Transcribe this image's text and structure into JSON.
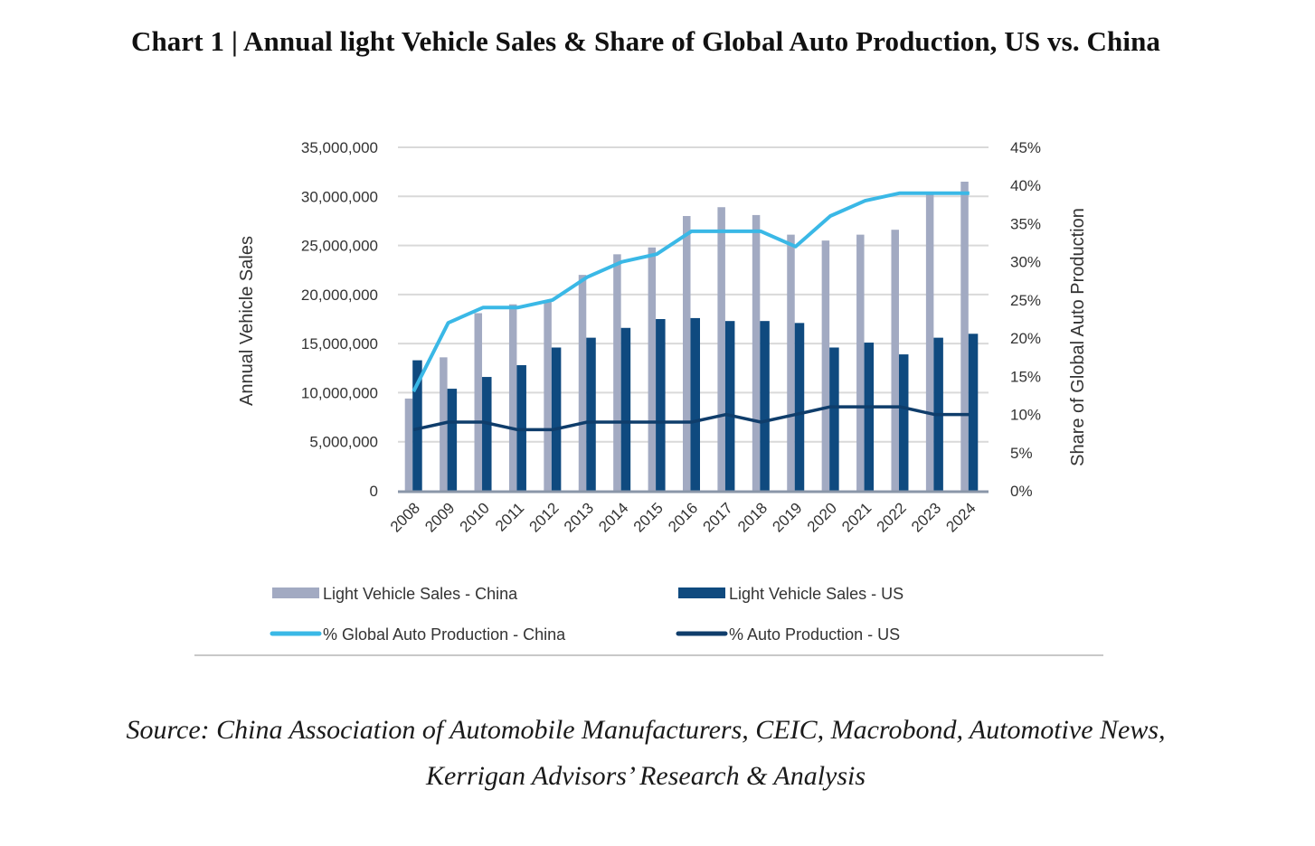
{
  "header": {
    "title": "Chart 1 | Annual light Vehicle Sales & Share of Global Auto Production, US vs. China"
  },
  "footer": {
    "source_line1": "Source: China Association of Automobile Manufacturers, CEIC, Macrobond, Automotive News,",
    "source_line2": "Kerrigan Advisors’ Research & Analysis"
  },
  "chart_data": {
    "type": "bar",
    "title": "Annual light Vehicle Sales & Share of Global Auto Production, US vs. China",
    "xlabel": "",
    "ylabel": "Annual Vehicle Sales",
    "y2label": "Share of Global Auto Production",
    "ylim": [
      0,
      35000000
    ],
    "y2lim": [
      0,
      45
    ],
    "grid": true,
    "legend_position": "bottom",
    "categories": [
      "2008",
      "2009",
      "2010",
      "2011",
      "2012",
      "2013",
      "2014",
      "2015",
      "2016",
      "2017",
      "2018",
      "2019",
      "2020",
      "2021",
      "2022",
      "2023",
      "2024"
    ],
    "yticks": [
      "0",
      "5,000,000",
      "10,000,000",
      "15,000,000",
      "20,000,000",
      "25,000,000",
      "30,000,000",
      "35,000,000"
    ],
    "y2ticks": [
      "0%",
      "5%",
      "10%",
      "15%",
      "20%",
      "25%",
      "30%",
      "35%",
      "40%",
      "45%"
    ],
    "series": [
      {
        "name": "Light Vehicle Sales - China",
        "type": "bar",
        "axis": "left",
        "color": "#a2aac2",
        "values": [
          9400000,
          13600000,
          18100000,
          19000000,
          19300000,
          22000000,
          24100000,
          24800000,
          28000000,
          28900000,
          28100000,
          26100000,
          25500000,
          26100000,
          26600000,
          30200000,
          31500000
        ]
      },
      {
        "name": "Light Vehicle Sales - US",
        "type": "bar",
        "axis": "left",
        "color": "#0f4a7f",
        "values": [
          13300000,
          10400000,
          11600000,
          12800000,
          14600000,
          15600000,
          16600000,
          17500000,
          17600000,
          17300000,
          17300000,
          17100000,
          14600000,
          15100000,
          13900000,
          15600000,
          16000000
        ]
      },
      {
        "name": "% Global Auto Production - China",
        "type": "line",
        "axis": "right",
        "color": "#3ab8e6",
        "values": [
          13,
          22,
          24,
          24,
          25,
          28,
          30,
          31,
          34,
          34,
          34,
          32,
          36,
          38,
          39,
          39,
          39
        ]
      },
      {
        "name": "% Auto Production - US",
        "type": "line",
        "axis": "right",
        "color": "#0f3d6b",
        "values": [
          8,
          9,
          9,
          8,
          8,
          9,
          9,
          9,
          9,
          10,
          9,
          10,
          11,
          11,
          11,
          10,
          10
        ]
      }
    ]
  }
}
